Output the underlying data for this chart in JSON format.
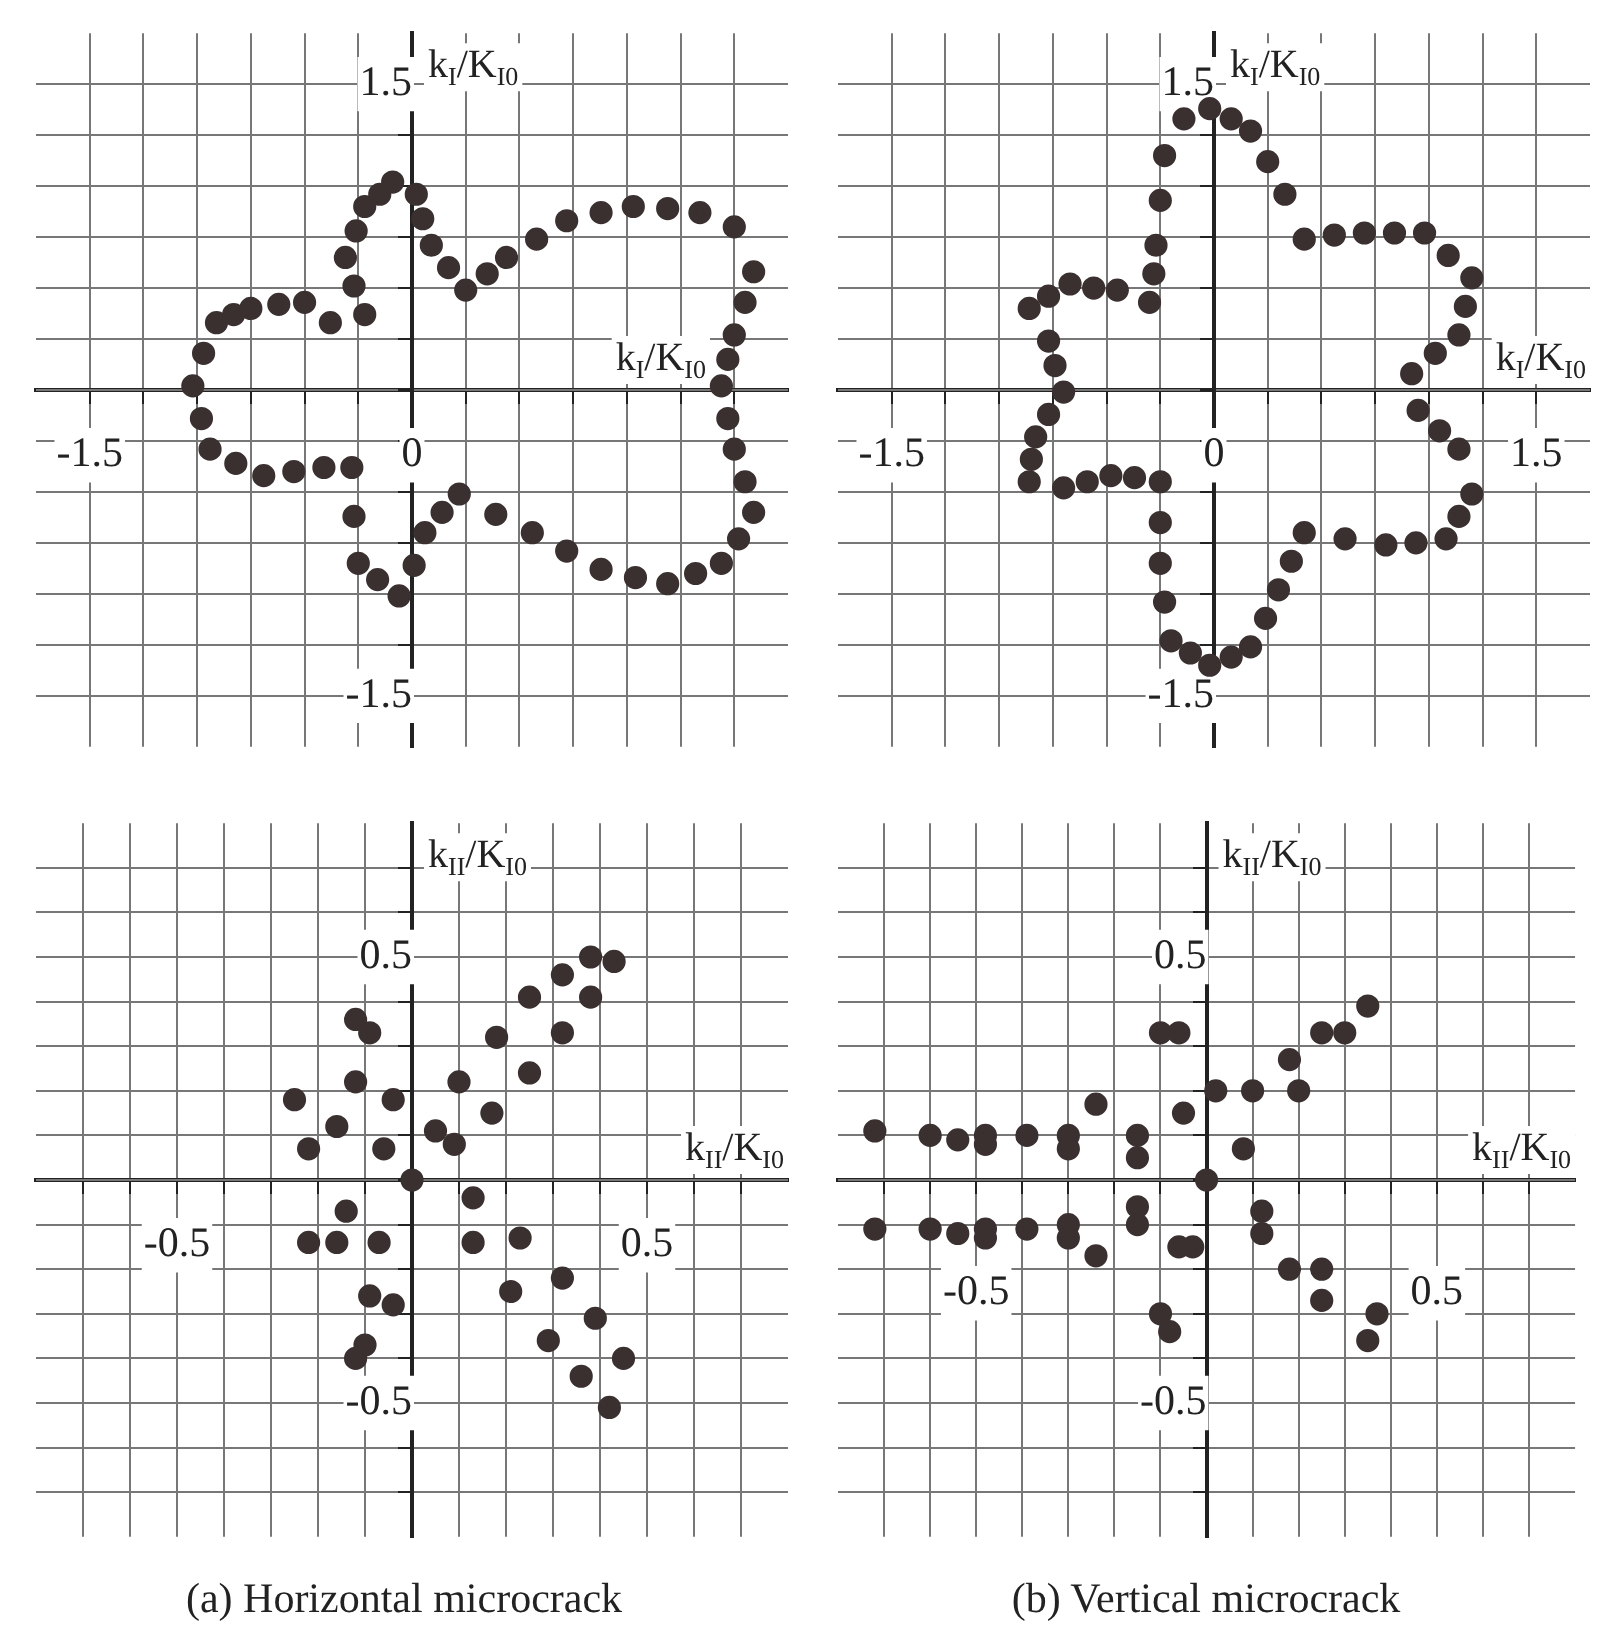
{
  "chart_data": [
    {
      "type": "scatter",
      "xlabel": "k$_{I}$/K$_{I0}$",
      "ylabel": "k$_{I}$/K$_{I0}$",
      "marker": "circle",
      "grid": true,
      "xlim": [
        -1.75,
        1.75
      ],
      "ylim": [
        -1.75,
        1.75
      ],
      "xticks": [
        {
          "value": -1.5,
          "label": "-1.5"
        },
        {
          "value": -1.25,
          "label": null
        },
        {
          "value": -1,
          "label": null
        },
        {
          "value": -0.75,
          "label": null
        },
        {
          "value": -0.5,
          "label": null
        },
        {
          "value": -0.25,
          "label": null
        },
        {
          "value": 0,
          "label": "0"
        },
        {
          "value": 0.25,
          "label": null
        },
        {
          "value": 0.5,
          "label": null
        },
        {
          "value": 0.75,
          "label": null
        },
        {
          "value": 1,
          "label": null
        },
        {
          "value": 1.25,
          "label": null
        },
        {
          "value": 1.5,
          "label": null
        }
      ],
      "yticks": [
        {
          "value": -1.5,
          "label": "-1.5"
        },
        {
          "value": -1.25,
          "label": null
        },
        {
          "value": -1,
          "label": null
        },
        {
          "value": -0.75,
          "label": null
        },
        {
          "value": -0.5,
          "label": null
        },
        {
          "value": -0.25,
          "label": null
        },
        {
          "value": 0,
          "label": null
        },
        {
          "value": 0.25,
          "label": null
        },
        {
          "value": 0.5,
          "label": null
        },
        {
          "value": 0.75,
          "label": null
        },
        {
          "value": 1,
          "label": null
        },
        {
          "value": 1.25,
          "label": null
        },
        {
          "value": 1.5,
          "label": "1.5"
        }
      ],
      "series": [
        {
          "color": "#3a3030",
          "x": [
            -0.91,
            -0.83,
            -0.75,
            -0.62,
            -0.5,
            -0.38,
            -0.22,
            -0.27,
            -0.31,
            -0.26,
            -0.22,
            -0.15,
            -0.09,
            0.02,
            0.05,
            0.09,
            0.17,
            0.25,
            0.35,
            0.44,
            0.58,
            0.72,
            0.88,
            1.03,
            1.19,
            1.34,
            1.5,
            1.59,
            1.55,
            1.5,
            1.47,
            1.44,
            1.47,
            1.5,
            1.55,
            1.59,
            1.52,
            1.44,
            1.32,
            1.19,
            1.04,
            0.88,
            0.72,
            0.56,
            0.39,
            0.22,
            0.14,
            0.06,
            0.01,
            -0.06,
            -0.16,
            -0.25,
            -0.27,
            -0.28,
            -0.41,
            -0.55,
            -0.69,
            -0.82,
            -0.94,
            -0.98,
            -1.02,
            -0.97
          ],
          "values": [
            0.33,
            0.37,
            0.4,
            0.42,
            0.43,
            0.33,
            0.37,
            0.51,
            0.65,
            0.78,
            0.9,
            0.96,
            1.02,
            0.96,
            0.84,
            0.71,
            0.6,
            0.49,
            0.57,
            0.65,
            0.74,
            0.83,
            0.87,
            0.9,
            0.89,
            0.87,
            0.8,
            0.58,
            0.43,
            0.27,
            0.15,
            0.02,
            -0.14,
            -0.29,
            -0.45,
            -0.6,
            -0.73,
            -0.85,
            -0.9,
            -0.95,
            -0.92,
            -0.88,
            -0.79,
            -0.7,
            -0.61,
            -0.51,
            -0.6,
            -0.7,
            -0.86,
            -1.01,
            -0.93,
            -0.85,
            -0.62,
            -0.38,
            -0.38,
            -0.4,
            -0.42,
            -0.36,
            -0.29,
            -0.14,
            0.02,
            0.18
          ]
        }
      ]
    },
    {
      "type": "scatter",
      "xlabel": "k$_{I}$/K$_{I0}$",
      "ylabel": "k$_{I}$/K$_{I0}$",
      "marker": "circle",
      "grid": true,
      "xlim": [
        -1.75,
        1.75
      ],
      "ylim": [
        -1.75,
        1.75
      ],
      "xticks": [
        {
          "value": -1.5,
          "label": "-1.5"
        },
        {
          "value": -1.25,
          "label": null
        },
        {
          "value": -1,
          "label": null
        },
        {
          "value": -0.75,
          "label": null
        },
        {
          "value": -0.5,
          "label": null
        },
        {
          "value": -0.25,
          "label": null
        },
        {
          "value": 0,
          "label": "0"
        },
        {
          "value": 0.25,
          "label": null
        },
        {
          "value": 0.5,
          "label": null
        },
        {
          "value": 0.75,
          "label": null
        },
        {
          "value": 1,
          "label": null
        },
        {
          "value": 1.25,
          "label": null
        },
        {
          "value": 1.5,
          "label": "1.5"
        }
      ],
      "yticks": [
        {
          "value": -1.5,
          "label": "-1.5"
        },
        {
          "value": -1.25,
          "label": null
        },
        {
          "value": -1,
          "label": null
        },
        {
          "value": -0.75,
          "label": null
        },
        {
          "value": -0.5,
          "label": null
        },
        {
          "value": -0.25,
          "label": null
        },
        {
          "value": 0,
          "label": null
        },
        {
          "value": 0.25,
          "label": null
        },
        {
          "value": 0.5,
          "label": null
        },
        {
          "value": 0.75,
          "label": null
        },
        {
          "value": 1,
          "label": null
        },
        {
          "value": 1.25,
          "label": null
        },
        {
          "value": 1.5,
          "label": "1.5"
        }
      ],
      "series": [
        {
          "color": "#3a3030",
          "x": [
            -0.02,
            0.08,
            0.17,
            0.25,
            0.33,
            0.42,
            0.56,
            0.7,
            0.84,
            0.98,
            1.09,
            1.2,
            1.17,
            1.14,
            1.03,
            0.92,
            0.95,
            1.05,
            1.14,
            1.2,
            1.14,
            1.08,
            0.94,
            0.8,
            0.61,
            0.42,
            0.36,
            0.3,
            0.24,
            0.17,
            0.08,
            -0.02,
            -0.11,
            -0.2,
            -0.23,
            -0.25,
            -0.25,
            -0.25,
            -0.37,
            -0.48,
            -0.59,
            -0.7,
            -0.86,
            -0.85,
            -0.83,
            -0.77,
            -0.7,
            -0.74,
            -0.77,
            -0.86,
            -0.77,
            -0.67,
            -0.56,
            -0.45,
            -0.3,
            -0.28,
            -0.27,
            -0.25,
            -0.23,
            -0.14
          ],
          "values": [
            1.38,
            1.33,
            1.27,
            1.12,
            0.96,
            0.74,
            0.76,
            0.77,
            0.77,
            0.77,
            0.66,
            0.55,
            0.41,
            0.27,
            0.18,
            0.08,
            -0.1,
            -0.2,
            -0.29,
            -0.51,
            -0.62,
            -0.73,
            -0.75,
            -0.76,
            -0.73,
            -0.7,
            -0.84,
            -0.98,
            -1.12,
            -1.26,
            -1.31,
            -1.35,
            -1.29,
            -1.23,
            -1.04,
            -0.85,
            -0.65,
            -0.45,
            -0.43,
            -0.42,
            -0.45,
            -0.48,
            -0.45,
            -0.34,
            -0.23,
            -0.12,
            -0.01,
            0.12,
            0.24,
            0.4,
            0.46,
            0.52,
            0.5,
            0.49,
            0.43,
            0.57,
            0.71,
            0.93,
            1.15,
            1.33
          ]
        }
      ]
    },
    {
      "type": "scatter",
      "xlabel": "k$_{II}$/K$_{I0}$",
      "ylabel": "k$_{II}$/K$_{I0}$",
      "marker": "circle",
      "grid": true,
      "xlim": [
        -0.8,
        0.8
      ],
      "ylim": [
        -0.8,
        0.8
      ],
      "xticks": [
        {
          "value": -0.7,
          "label": null
        },
        {
          "value": -0.6,
          "label": null
        },
        {
          "value": -0.5,
          "label": "-0.5"
        },
        {
          "value": -0.4,
          "label": null
        },
        {
          "value": -0.3,
          "label": null
        },
        {
          "value": -0.2,
          "label": null
        },
        {
          "value": -0.1,
          "label": null
        },
        {
          "value": 0,
          "label": null
        },
        {
          "value": 0.1,
          "label": null
        },
        {
          "value": 0.2,
          "label": null
        },
        {
          "value": 0.3,
          "label": null
        },
        {
          "value": 0.4,
          "label": null
        },
        {
          "value": 0.5,
          "label": "0.5"
        },
        {
          "value": 0.6,
          "label": null
        },
        {
          "value": 0.7,
          "label": null
        }
      ],
      "yticks": [
        {
          "value": -0.7,
          "label": null
        },
        {
          "value": -0.6,
          "label": null
        },
        {
          "value": -0.5,
          "label": "-0.5"
        },
        {
          "value": -0.4,
          "label": null
        },
        {
          "value": -0.3,
          "label": null
        },
        {
          "value": -0.2,
          "label": null
        },
        {
          "value": -0.1,
          "label": null
        },
        {
          "value": 0,
          "label": null
        },
        {
          "value": 0.1,
          "label": null
        },
        {
          "value": 0.2,
          "label": null
        },
        {
          "value": 0.3,
          "label": null
        },
        {
          "value": 0.4,
          "label": null
        },
        {
          "value": 0.5,
          "label": "0.5"
        },
        {
          "value": 0.6,
          "label": null
        },
        {
          "value": 0.7,
          "label": null
        }
      ],
      "annotations": [
        "(a) Horizontal microcrack"
      ],
      "series": [
        {
          "color": "#3a3030",
          "x": [
            0.43,
            0.38,
            0.32,
            0.25,
            0.18,
            0.1,
            0.05,
            0,
            -0.04,
            -0.09,
            -0.12,
            -0.12,
            -0.06,
            -0.16,
            -0.25,
            -0.22,
            -0.14,
            -0.22,
            -0.16,
            -0.07,
            -0.09,
            -0.1,
            -0.12,
            -0.04,
            0.13,
            0.21,
            0.29,
            0.36,
            0.42,
            0.45,
            0.39,
            0.32,
            0.23,
            0.13,
            0.09,
            0.17,
            0.25,
            0.32,
            0.38
          ],
          "values": [
            0.49,
            0.5,
            0.46,
            0.41,
            0.32,
            0.22,
            0.11,
            0,
            0.18,
            0.33,
            0.36,
            0.22,
            0.07,
            0.12,
            0.18,
            0.07,
            -0.07,
            -0.14,
            -0.14,
            -0.14,
            -0.26,
            -0.37,
            -0.4,
            -0.28,
            -0.14,
            -0.25,
            -0.36,
            -0.44,
            -0.51,
            -0.4,
            -0.31,
            -0.22,
            -0.13,
            -0.04,
            0.08,
            0.15,
            0.24,
            0.33,
            0.41
          ]
        }
      ]
    },
    {
      "type": "scatter",
      "xlabel": "k$_{II}$/K$_{I0}$",
      "ylabel": "k$_{II}$/K$_{I0}$",
      "marker": "circle",
      "grid": true,
      "xlim": [
        -0.8,
        0.8
      ],
      "ylim": [
        -0.8,
        0.8
      ],
      "xticks": [
        {
          "value": -0.7,
          "label": null
        },
        {
          "value": -0.6,
          "label": null
        },
        {
          "value": -0.5,
          "label": "-0.5"
        },
        {
          "value": -0.4,
          "label": null
        },
        {
          "value": -0.3,
          "label": null
        },
        {
          "value": -0.2,
          "label": null
        },
        {
          "value": -0.1,
          "label": null
        },
        {
          "value": 0,
          "label": null
        },
        {
          "value": 0.1,
          "label": null
        },
        {
          "value": 0.2,
          "label": null
        },
        {
          "value": 0.3,
          "label": null
        },
        {
          "value": 0.4,
          "label": null
        },
        {
          "value": 0.5,
          "label": "0.5"
        },
        {
          "value": 0.6,
          "label": null
        },
        {
          "value": 0.7,
          "label": null
        }
      ],
      "yticks": [
        {
          "value": -0.7,
          "label": null
        },
        {
          "value": -0.6,
          "label": null
        },
        {
          "value": -0.5,
          "label": "-0.5"
        },
        {
          "value": -0.4,
          "label": null
        },
        {
          "value": -0.3,
          "label": null
        },
        {
          "value": -0.2,
          "label": null
        },
        {
          "value": -0.1,
          "label": null
        },
        {
          "value": 0,
          "label": null
        },
        {
          "value": 0.1,
          "label": null
        },
        {
          "value": 0.2,
          "label": null
        },
        {
          "value": 0.3,
          "label": null
        },
        {
          "value": 0.4,
          "label": null
        },
        {
          "value": 0.5,
          "label": "0.5"
        },
        {
          "value": 0.6,
          "label": null
        },
        {
          "value": 0.7,
          "label": null
        }
      ],
      "annotations": [
        "(b) Vertical microcrack"
      ],
      "series": [
        {
          "color": "#3a3030",
          "x": [
            0.35,
            0.3,
            0.2,
            0.08,
            0,
            0.02,
            -0.06,
            -0.1,
            -0.05,
            -0.15,
            -0.24,
            -0.3,
            -0.39,
            -0.48,
            -0.6,
            -0.72,
            -0.54,
            -0.48,
            -0.3,
            -0.15,
            -0.15,
            -0.3,
            -0.39,
            -0.48,
            -0.6,
            -0.72,
            -0.54,
            -0.48,
            -0.3,
            -0.24,
            -0.15,
            -0.03,
            -0.08,
            -0.1,
            -0.06,
            0.12,
            0.18,
            0.25,
            0.35,
            0.37,
            0.25,
            0.12,
            0.1,
            0.18,
            0.25
          ],
          "values": [
            0.39,
            0.33,
            0.2,
            0.07,
            0,
            0.2,
            0.33,
            0.33,
            0.15,
            0.1,
            0.17,
            0.1,
            0.1,
            0.1,
            0.1,
            0.11,
            0.09,
            0.08,
            0.07,
            0.05,
            -0.06,
            -0.1,
            -0.11,
            -0.11,
            -0.11,
            -0.11,
            -0.12,
            -0.13,
            -0.13,
            -0.17,
            -0.1,
            -0.15,
            -0.34,
            -0.3,
            -0.15,
            -0.12,
            -0.2,
            -0.27,
            -0.36,
            -0.3,
            -0.2,
            -0.07,
            0.2,
            0.27,
            0.33
          ]
        }
      ]
    }
  ]
}
